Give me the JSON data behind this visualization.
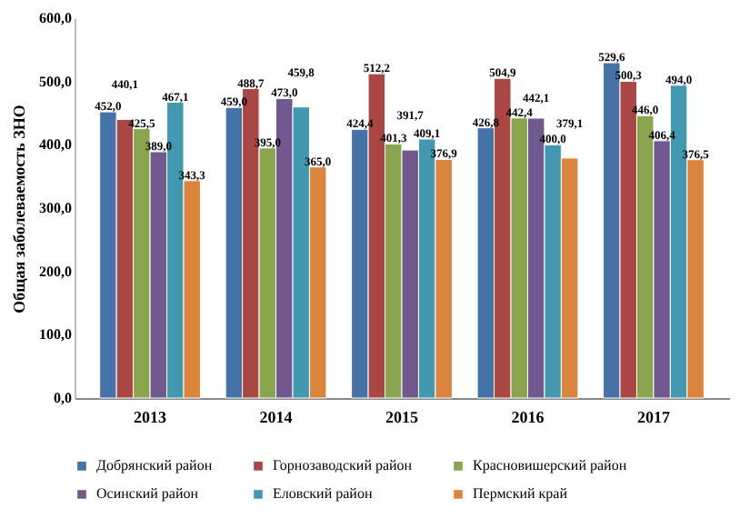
{
  "chart_data": {
    "type": "bar",
    "ylabel": "Общая заболеваемость ЗНО",
    "categories": [
      "2013",
      "2014",
      "2015",
      "2016",
      "2017"
    ],
    "series": [
      {
        "name": "Добрянский район",
        "color": "#4572a7",
        "values": [
          452.0,
          459.0,
          424.4,
          426.8,
          529.6
        ],
        "value_labels": [
          "452,0",
          "459,0",
          "424,4",
          "426,8",
          "529,6"
        ]
      },
      {
        "name": "Горнозаводский район",
        "color": "#aa4643",
        "values": [
          440.1,
          488.7,
          512.2,
          504.9,
          500.3
        ],
        "value_labels": [
          "440,1",
          "488,7",
          "512,2",
          "504,9",
          "500,3"
        ]
      },
      {
        "name": "Красновишерский район",
        "color": "#89a54e",
        "values": [
          425.5,
          395.0,
          401.3,
          442.4,
          446.0
        ],
        "value_labels": [
          "425,5",
          "395,0",
          "401,3",
          "442,4",
          "446,0"
        ]
      },
      {
        "name": "Осинский район",
        "color": "#71588f",
        "values": [
          389.0,
          473.0,
          391.7,
          442.1,
          406.4
        ],
        "value_labels": [
          "389,0",
          "473,0",
          "391,7",
          "442,1",
          "406,4"
        ]
      },
      {
        "name": "Еловский район",
        "color": "#4198af",
        "values": [
          467.1,
          459.8,
          409.1,
          400.0,
          494.0
        ],
        "value_labels": [
          "467,1",
          "459,8",
          "409,1",
          "400,0",
          "494,0"
        ]
      },
      {
        "name": "Пермский край",
        "color": "#db843d",
        "values": [
          343.3,
          365.0,
          376.9,
          379.1,
          376.5
        ],
        "value_labels": [
          "343,3",
          "365,0",
          "376,9",
          "379,1",
          "376,5"
        ]
      }
    ],
    "ylim": [
      0,
      600
    ],
    "yticks": [
      {
        "value": 0,
        "label": "0,0"
      },
      {
        "value": 100,
        "label": "100,0"
      },
      {
        "value": 200,
        "label": "200,0"
      },
      {
        "value": 300,
        "label": "300,0"
      },
      {
        "value": 400,
        "label": "400,0"
      },
      {
        "value": 500,
        "label": "500,0"
      },
      {
        "value": 600,
        "label": "600,0"
      }
    ],
    "grid": false,
    "legend": "bottom"
  }
}
